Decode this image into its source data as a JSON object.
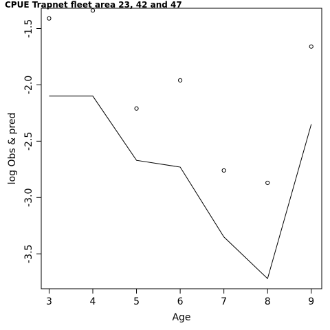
{
  "chart_data": {
    "type": "line",
    "title": "CPUE Trapnet fleet area 23, 42 and 47",
    "xlabel": "Age",
    "ylabel": "log Obs & pred",
    "xlim": [
      2.82,
      9.24
    ],
    "ylim": [
      -3.81,
      -1.32
    ],
    "x_ticks": [
      3,
      4,
      5,
      6,
      7,
      8,
      9
    ],
    "x_tick_labels": [
      "3",
      "4",
      "5",
      "6",
      "7",
      "8",
      "9"
    ],
    "y_ticks": [
      -3.5,
      -3.0,
      -2.5,
      -2.0,
      -1.5
    ],
    "y_tick_labels": [
      "-3.5",
      "-3.0",
      "-2.5",
      "-2.0",
      "-1.5"
    ],
    "grid": false,
    "series": [
      {
        "kind": "points",
        "x": [
          3,
          4,
          5,
          6,
          7,
          8,
          9
        ],
        "y": [
          -1.41,
          -1.34,
          -2.21,
          -1.96,
          -2.76,
          -2.87,
          -1.66
        ]
      },
      {
        "kind": "line",
        "x": [
          3,
          4,
          5,
          6,
          7,
          8,
          9
        ],
        "y": [
          -2.1,
          -2.1,
          -2.67,
          -2.73,
          -3.35,
          -3.72,
          -2.35
        ]
      }
    ]
  }
}
